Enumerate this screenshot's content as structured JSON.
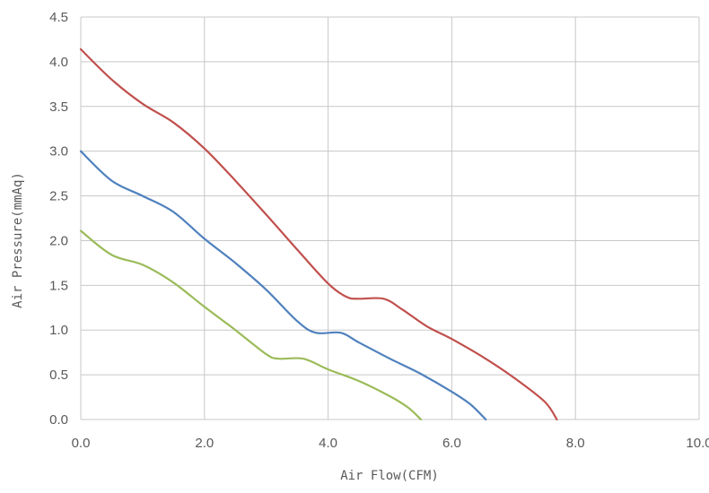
{
  "chart_data": {
    "type": "line",
    "title": "",
    "xlabel": "Air Flow(CFM)",
    "ylabel": "Air Pressure(mmAq)",
    "xlim": [
      0,
      10
    ],
    "ylim": [
      0,
      4.5
    ],
    "xticks": [
      "0.0",
      "2.0",
      "4.0",
      "6.0",
      "8.0",
      "10.0"
    ],
    "yticks": [
      "0.0",
      "0.5",
      "1.0",
      "1.5",
      "2.0",
      "2.5",
      "3.0",
      "3.5",
      "4.0",
      "4.5"
    ],
    "grid": true,
    "legend": "none",
    "series": [
      {
        "color": "#c0504d",
        "points": [
          [
            0,
            4.14
          ],
          [
            0.5,
            3.8
          ],
          [
            1.0,
            3.53
          ],
          [
            1.5,
            3.32
          ],
          [
            2.0,
            3.03
          ],
          [
            2.5,
            2.67
          ],
          [
            3.0,
            2.29
          ],
          [
            3.5,
            1.9
          ],
          [
            4.0,
            1.52
          ],
          [
            4.3,
            1.37
          ],
          [
            4.5,
            1.35
          ],
          [
            4.9,
            1.35
          ],
          [
            5.2,
            1.23
          ],
          [
            5.6,
            1.04
          ],
          [
            6.0,
            0.9
          ],
          [
            6.5,
            0.7
          ],
          [
            7.0,
            0.47
          ],
          [
            7.5,
            0.2
          ],
          [
            7.7,
            0.0
          ]
        ]
      },
      {
        "color": "#4f81bd",
        "points": [
          [
            0,
            3.0
          ],
          [
            0.5,
            2.67
          ],
          [
            1.0,
            2.5
          ],
          [
            1.5,
            2.32
          ],
          [
            2.0,
            2.02
          ],
          [
            2.5,
            1.75
          ],
          [
            3.0,
            1.45
          ],
          [
            3.5,
            1.1
          ],
          [
            3.8,
            0.97
          ],
          [
            4.2,
            0.97
          ],
          [
            4.5,
            0.86
          ],
          [
            5.0,
            0.68
          ],
          [
            5.5,
            0.51
          ],
          [
            6.0,
            0.31
          ],
          [
            6.3,
            0.17
          ],
          [
            6.55,
            0.0
          ]
        ]
      },
      {
        "color": "#9bbb59",
        "points": [
          [
            0,
            2.11
          ],
          [
            0.5,
            1.84
          ],
          [
            1.0,
            1.73
          ],
          [
            1.5,
            1.53
          ],
          [
            2.0,
            1.26
          ],
          [
            2.5,
            1.0
          ],
          [
            3.0,
            0.73
          ],
          [
            3.2,
            0.68
          ],
          [
            3.6,
            0.68
          ],
          [
            4.0,
            0.56
          ],
          [
            4.5,
            0.43
          ],
          [
            5.0,
            0.26
          ],
          [
            5.3,
            0.13
          ],
          [
            5.5,
            0.0
          ]
        ]
      }
    ]
  }
}
